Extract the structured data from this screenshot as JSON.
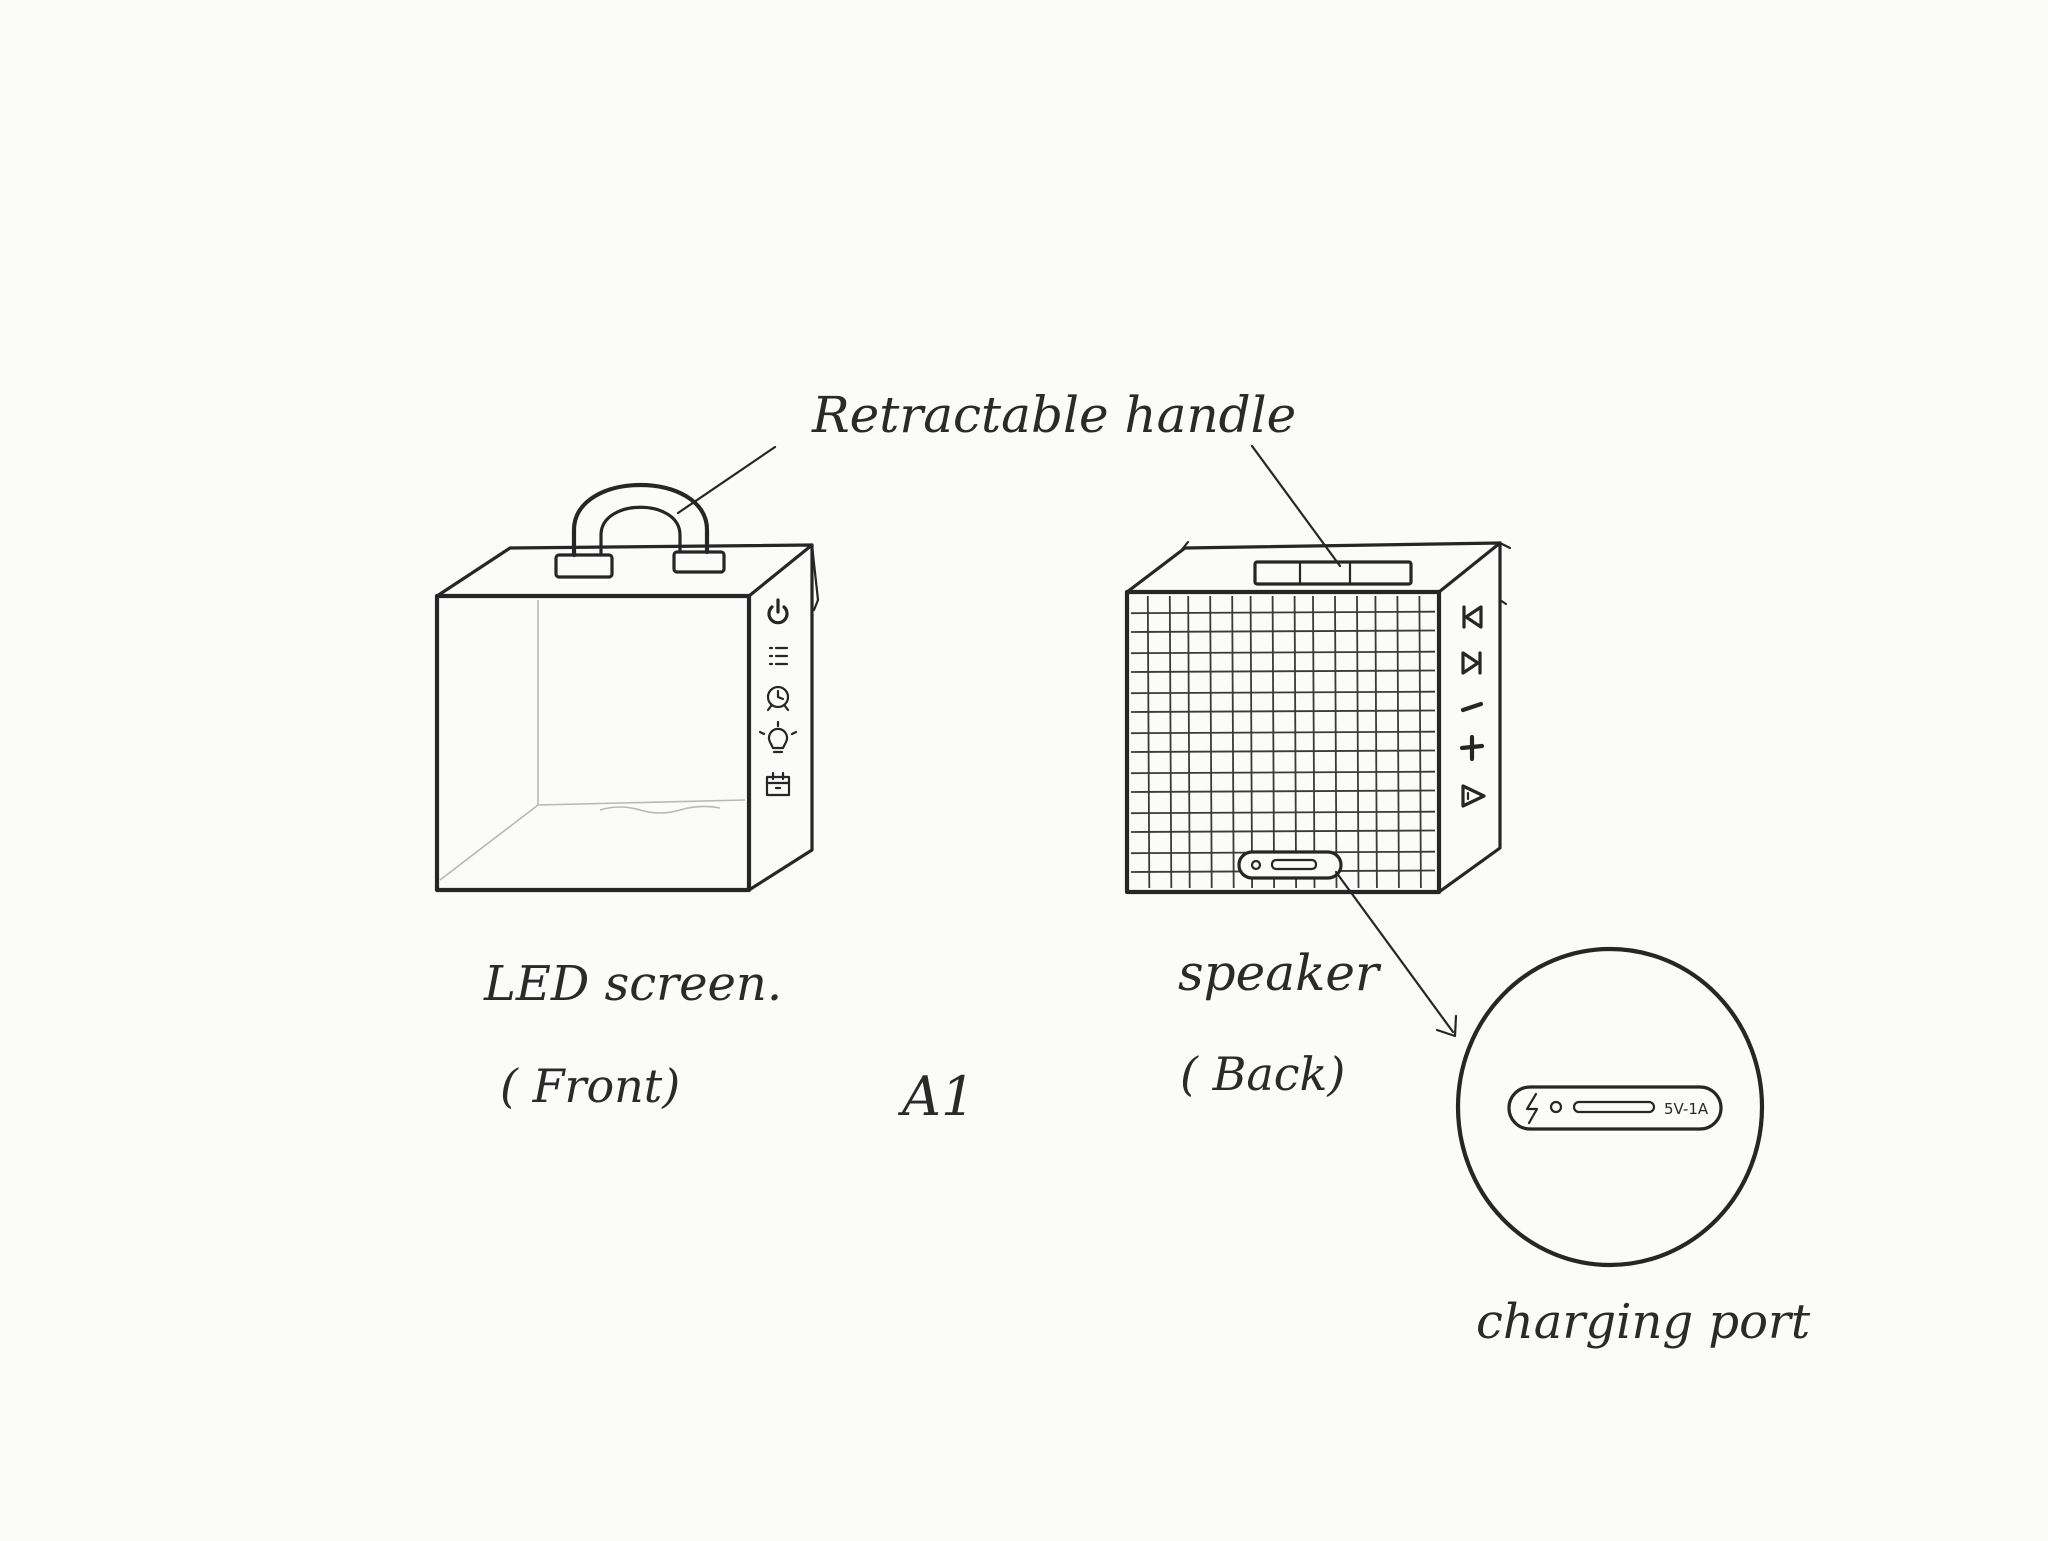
{
  "labels": {
    "handle": "Retractable handle",
    "front_main": "LED screen.",
    "front_sub": "( Front)",
    "back_main": "speaker",
    "back_sub": "( Back)",
    "center_mark": "A1",
    "port": "charging port",
    "port_rating": "5V-1A"
  },
  "icons": {
    "front_side_buttons": [
      "power-icon",
      "list-icon",
      "alarm-clock-icon",
      "light-bulb-icon",
      "calendar-icon"
    ],
    "back_side_buttons": [
      "previous-track-icon",
      "next-track-icon",
      "volume-down-icon",
      "volume-up-icon",
      "play-icon"
    ],
    "port_icons": [
      "lightning-icon",
      "led-dot-icon",
      "usb-slot-icon"
    ]
  },
  "colors": {
    "paper": "#fbfbfa",
    "pencil": "#262626"
  }
}
